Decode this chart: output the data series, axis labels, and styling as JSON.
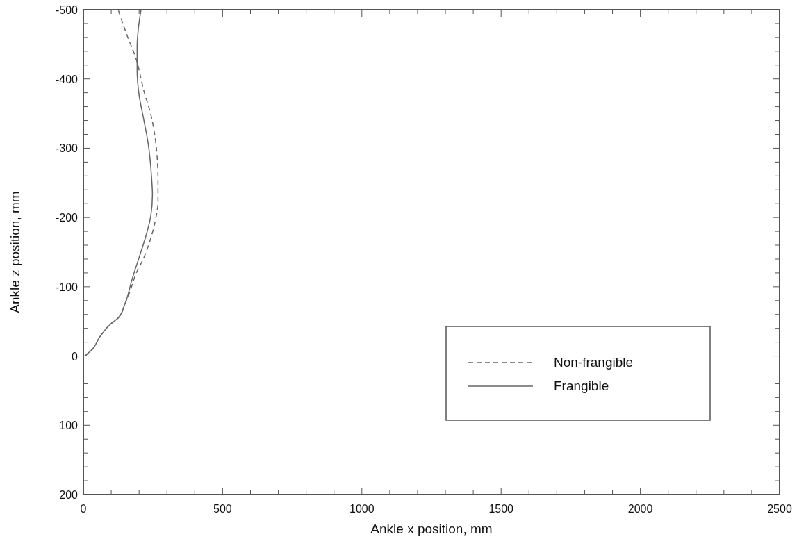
{
  "chart_data": {
    "type": "line",
    "xlabel": "Ankle x position, mm",
    "ylabel": "Ankle z position, mm",
    "xlim": [
      0,
      2500
    ],
    "ylim": [
      200,
      -500
    ],
    "xticks": [
      0,
      {
        "value": 100,
        "label": null
      },
      {
        "value": 200,
        "label": null
      },
      {
        "value": 300,
        "label": null
      },
      {
        "value": 400,
        "label": null
      },
      500,
      {
        "value": 600,
        "label": null
      },
      {
        "value": 700,
        "label": null
      },
      {
        "value": 800,
        "label": null
      },
      {
        "value": 900,
        "label": null
      },
      1000,
      {
        "value": 1100,
        "label": null
      },
      {
        "value": 1200,
        "label": null
      },
      {
        "value": 1300,
        "label": null
      },
      {
        "value": 1400,
        "label": null
      },
      1500,
      {
        "value": 1600,
        "label": null
      },
      {
        "value": 1700,
        "label": null
      },
      {
        "value": 1800,
        "label": null
      },
      {
        "value": 1900,
        "label": null
      },
      2000,
      {
        "value": 2100,
        "label": null
      },
      {
        "value": 2200,
        "label": null
      },
      {
        "value": 2300,
        "label": null
      },
      {
        "value": 2400,
        "label": null
      },
      2500
    ],
    "yticks": [
      200,
      {
        "value": 180,
        "label": null
      },
      {
        "value": 160,
        "label": null
      },
      {
        "value": 140,
        "label": null
      },
      {
        "value": 120,
        "label": null
      },
      100,
      {
        "value": 80,
        "label": null
      },
      {
        "value": 60,
        "label": null
      },
      {
        "value": 40,
        "label": null
      },
      {
        "value": 20,
        "label": null
      },
      0,
      {
        "value": -20,
        "label": null
      },
      {
        "value": -40,
        "label": null
      },
      {
        "value": -60,
        "label": null
      },
      {
        "value": -80,
        "label": null
      },
      -100,
      {
        "value": -120,
        "label": null
      },
      {
        "value": -140,
        "label": null
      },
      {
        "value": -160,
        "label": null
      },
      {
        "value": -180,
        "label": null
      },
      -200,
      {
        "value": -220,
        "label": null
      },
      {
        "value": -240,
        "label": null
      },
      {
        "value": -260,
        "label": null
      },
      {
        "value": -280,
        "label": null
      },
      -300,
      {
        "value": -320,
        "label": null
      },
      {
        "value": -340,
        "label": null
      },
      {
        "value": -360,
        "label": null
      },
      {
        "value": -380,
        "label": null
      },
      -400,
      {
        "value": -420,
        "label": null
      },
      {
        "value": -440,
        "label": null
      },
      {
        "value": -460,
        "label": null
      },
      {
        "value": -480,
        "label": null
      },
      -500
    ],
    "grid": false,
    "legend": "bottom right",
    "marker": "none",
    "series": [
      {
        "name": "Non-frangible",
        "color": "#666666",
        "line_style": "dashed",
        "x": [
          5,
          33,
          58,
          100,
          125,
          150,
          168,
          188,
          217,
          242,
          258,
          268,
          268,
          267,
          258,
          242,
          217,
          190,
          155,
          125
        ],
        "values": [
          0,
          -10,
          -27,
          -47,
          -55,
          -76,
          -94,
          -118,
          -142,
          -170,
          -195,
          -223,
          -254,
          -272,
          -314,
          -349,
          -383,
          -428,
          -465,
          -500
        ]
      },
      {
        "name": "Frangible",
        "color": "#666666",
        "line_style": "solid",
        "x": [
          5,
          33,
          58,
          100,
          125,
          150,
          175,
          200,
          225,
          242,
          248,
          245,
          233,
          217,
          200,
          193,
          193,
          198,
          207
        ],
        "values": [
          0,
          -10,
          -27,
          -47,
          -55,
          -76,
          -111,
          -142,
          -174,
          -202,
          -233,
          -257,
          -306,
          -341,
          -377,
          -412,
          -447,
          -475,
          -500
        ]
      }
    ]
  }
}
